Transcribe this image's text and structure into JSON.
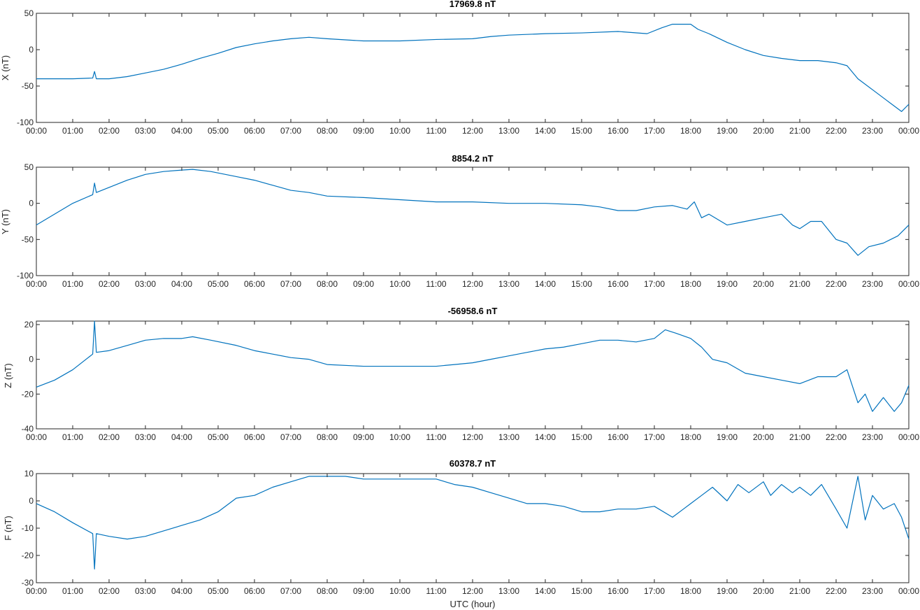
{
  "figure": {
    "xlabel": "UTC (hour)"
  },
  "chart_data": [
    {
      "type": "line",
      "title": "17969.8 nT",
      "ylabel": "X (nT)",
      "xlabel": "",
      "ylim": [
        -100,
        50
      ],
      "yticks": [
        -100,
        -50,
        0,
        50
      ],
      "xlim": [
        0,
        24
      ],
      "xtick_labels": [
        "00:00",
        "01:00",
        "02:00",
        "03:00",
        "04:00",
        "05:00",
        "06:00",
        "07:00",
        "08:00",
        "09:00",
        "10:00",
        "11:00",
        "12:00",
        "13:00",
        "14:00",
        "15:00",
        "16:00",
        "17:00",
        "18:00",
        "19:00",
        "20:00",
        "21:00",
        "22:00",
        "23:00",
        "00:00"
      ],
      "grid": false,
      "color": "#0072BD",
      "x": [
        0,
        0.5,
        1.0,
        1.55,
        1.6,
        1.65,
        2.0,
        2.5,
        3.0,
        3.5,
        4.0,
        4.5,
        5.0,
        5.5,
        6.0,
        6.5,
        7.0,
        7.5,
        8.0,
        9.0,
        10.0,
        11.0,
        12.0,
        12.5,
        13.0,
        14.0,
        15.0,
        16.0,
        16.8,
        17.2,
        17.5,
        18.0,
        18.2,
        18.5,
        19.0,
        19.5,
        20.0,
        20.5,
        21.0,
        21.5,
        22.0,
        22.3,
        22.6,
        23.0,
        23.4,
        23.8,
        24.0
      ],
      "y": [
        -40,
        -40,
        -40,
        -39,
        -30,
        -40,
        -40,
        -37,
        -32,
        -27,
        -20,
        -12,
        -5,
        3,
        8,
        12,
        15,
        17,
        15,
        12,
        12,
        14,
        15,
        18,
        20,
        22,
        23,
        25,
        22,
        30,
        35,
        35,
        28,
        22,
        10,
        0,
        -8,
        -12,
        -15,
        -15,
        -18,
        -22,
        -40,
        -55,
        -70,
        -85,
        -75
      ]
    },
    {
      "type": "line",
      "title": "8854.2 nT",
      "ylabel": "Y (nT)",
      "xlabel": "",
      "ylim": [
        -100,
        50
      ],
      "yticks": [
        -100,
        -50,
        0,
        50
      ],
      "xlim": [
        0,
        24
      ],
      "xtick_labels": [
        "00:00",
        "01:00",
        "02:00",
        "03:00",
        "04:00",
        "05:00",
        "06:00",
        "07:00",
        "08:00",
        "09:00",
        "10:00",
        "11:00",
        "12:00",
        "13:00",
        "14:00",
        "15:00",
        "16:00",
        "17:00",
        "18:00",
        "19:00",
        "20:00",
        "21:00",
        "22:00",
        "23:00",
        "00:00"
      ],
      "grid": false,
      "color": "#0072BD",
      "x": [
        0,
        0.5,
        1.0,
        1.55,
        1.6,
        1.65,
        2.0,
        2.5,
        3.0,
        3.5,
        4.0,
        4.3,
        4.8,
        5.5,
        6.0,
        6.5,
        7.0,
        7.5,
        8.0,
        9.0,
        10.0,
        11.0,
        12.0,
        13.0,
        14.0,
        15.0,
        15.5,
        16.0,
        16.5,
        17.0,
        17.5,
        17.9,
        18.1,
        18.3,
        18.5,
        19.0,
        19.5,
        20.0,
        20.5,
        20.8,
        21.0,
        21.3,
        21.6,
        22.0,
        22.3,
        22.6,
        22.9,
        23.3,
        23.7,
        24.0
      ],
      "y": [
        -30,
        -15,
        0,
        12,
        28,
        15,
        22,
        32,
        40,
        44,
        46,
        47,
        44,
        37,
        32,
        25,
        18,
        15,
        10,
        8,
        5,
        2,
        2,
        0,
        0,
        -2,
        -5,
        -10,
        -10,
        -5,
        -3,
        -8,
        2,
        -20,
        -15,
        -30,
        -25,
        -20,
        -15,
        -30,
        -35,
        -25,
        -25,
        -50,
        -55,
        -72,
        -60,
        -55,
        -45,
        -30
      ]
    },
    {
      "type": "line",
      "title": "-56958.6 nT",
      "ylabel": "Z (nT)",
      "xlabel": "",
      "ylim": [
        -40,
        22
      ],
      "yticks": [
        -40,
        -20,
        0,
        20
      ],
      "xlim": [
        0,
        24
      ],
      "xtick_labels": [
        "00:00",
        "01:00",
        "02:00",
        "03:00",
        "04:00",
        "05:00",
        "06:00",
        "07:00",
        "08:00",
        "09:00",
        "10:00",
        "11:00",
        "12:00",
        "13:00",
        "14:00",
        "15:00",
        "16:00",
        "17:00",
        "18:00",
        "19:00",
        "20:00",
        "21:00",
        "22:00",
        "23:00",
        "00:00"
      ],
      "grid": false,
      "color": "#0072BD",
      "x": [
        0,
        0.5,
        1.0,
        1.55,
        1.6,
        1.65,
        2.0,
        2.5,
        3.0,
        3.5,
        4.0,
        4.3,
        4.8,
        5.5,
        6.0,
        6.5,
        7.0,
        7.5,
        8.0,
        9.0,
        10.0,
        11.0,
        11.5,
        12.0,
        12.5,
        13.0,
        13.5,
        14.0,
        14.5,
        15.0,
        15.5,
        16.0,
        16.5,
        17.0,
        17.3,
        17.6,
        18.0,
        18.3,
        18.6,
        19.0,
        19.5,
        20.0,
        20.5,
        21.0,
        21.5,
        22.0,
        22.3,
        22.6,
        22.8,
        23.0,
        23.3,
        23.6,
        23.8,
        24.0
      ],
      "y": [
        -16,
        -12,
        -6,
        3,
        22,
        4,
        5,
        8,
        11,
        12,
        12,
        13,
        11,
        8,
        5,
        3,
        1,
        0,
        -3,
        -4,
        -4,
        -4,
        -3,
        -2,
        0,
        2,
        4,
        6,
        7,
        9,
        11,
        11,
        10,
        12,
        17,
        15,
        12,
        7,
        0,
        -2,
        -8,
        -10,
        -12,
        -14,
        -10,
        -10,
        -6,
        -25,
        -20,
        -30,
        -22,
        -30,
        -25,
        -15
      ]
    },
    {
      "type": "line",
      "title": "60378.7 nT",
      "ylabel": "F (nT)",
      "xlabel": "UTC (hour)",
      "ylim": [
        -30,
        10
      ],
      "yticks": [
        -30,
        -20,
        -10,
        0,
        10
      ],
      "xlim": [
        0,
        24
      ],
      "xtick_labels": [
        "00:00",
        "01:00",
        "02:00",
        "03:00",
        "04:00",
        "05:00",
        "06:00",
        "07:00",
        "08:00",
        "09:00",
        "10:00",
        "11:00",
        "12:00",
        "13:00",
        "14:00",
        "15:00",
        "16:00",
        "17:00",
        "18:00",
        "19:00",
        "20:00",
        "21:00",
        "22:00",
        "23:00",
        "00:00"
      ],
      "grid": false,
      "color": "#0072BD",
      "x": [
        0,
        0.5,
        1.0,
        1.55,
        1.6,
        1.65,
        2.0,
        2.5,
        3.0,
        3.5,
        4.0,
        4.5,
        5.0,
        5.5,
        6.0,
        6.5,
        7.0,
        7.5,
        8.0,
        8.5,
        9.0,
        10.0,
        11.0,
        11.5,
        12.0,
        12.5,
        13.0,
        13.5,
        14.0,
        14.5,
        15.0,
        15.5,
        16.0,
        16.5,
        17.0,
        17.5,
        17.8,
        18.0,
        18.3,
        18.6,
        19.0,
        19.3,
        19.6,
        20.0,
        20.2,
        20.5,
        20.8,
        21.0,
        21.3,
        21.6,
        22.0,
        22.3,
        22.6,
        22.8,
        23.0,
        23.3,
        23.6,
        23.8,
        24.0
      ],
      "y": [
        -1,
        -4,
        -8,
        -12,
        -25,
        -12,
        -13,
        -14,
        -13,
        -11,
        -9,
        -7,
        -4,
        1,
        2,
        5,
        7,
        9,
        9,
        9,
        8,
        8,
        8,
        6,
        5,
        3,
        1,
        -1,
        -1,
        -2,
        -4,
        -4,
        -3,
        -3,
        -2,
        -6,
        -3,
        -1,
        2,
        5,
        0,
        6,
        3,
        7,
        2,
        6,
        3,
        5,
        2,
        6,
        -3,
        -10,
        9,
        -7,
        2,
        -3,
        -1,
        -6,
        -14
      ]
    }
  ]
}
